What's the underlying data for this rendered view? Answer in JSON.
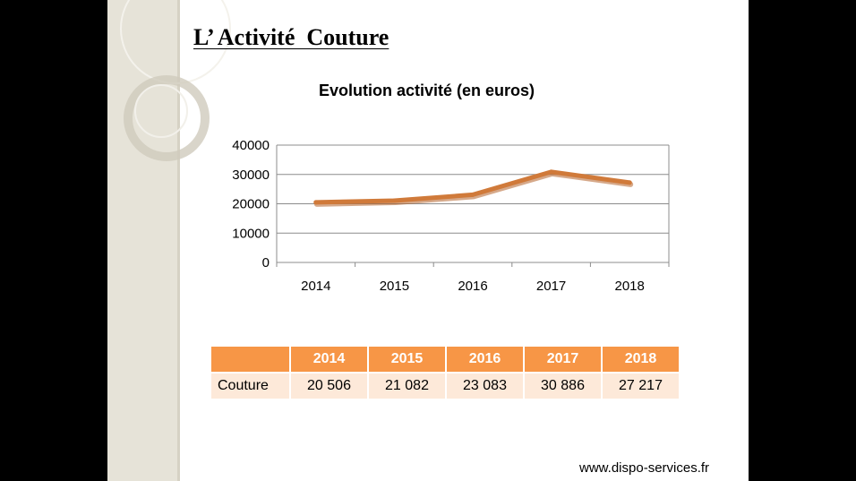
{
  "slide": {
    "title": "L’ Activité  Couture",
    "footer_url": "www.dispo-services.fr"
  },
  "chart_data": {
    "type": "line",
    "title": "Evolution activité (en euros)",
    "x": [
      "2014",
      "2015",
      "2016",
      "2017",
      "2018"
    ],
    "series": [
      {
        "name": "Couture",
        "values": [
          20506,
          21082,
          23083,
          30886,
          27217
        ],
        "color": "#d07a3a"
      }
    ],
    "ylim": [
      0,
      40000
    ],
    "yticks": [
      "0",
      "10000",
      "20000",
      "30000",
      "40000"
    ],
    "grid": true,
    "legend": "none"
  },
  "table": {
    "headers": [
      "",
      "2014",
      "2015",
      "2016",
      "2017",
      "2018"
    ],
    "rows": [
      [
        "Couture",
        "20 506",
        "21 082",
        "23 083",
        "30 886",
        "27 217"
      ]
    ],
    "header_color": "#f79646",
    "row_color": "#fde9d9"
  }
}
